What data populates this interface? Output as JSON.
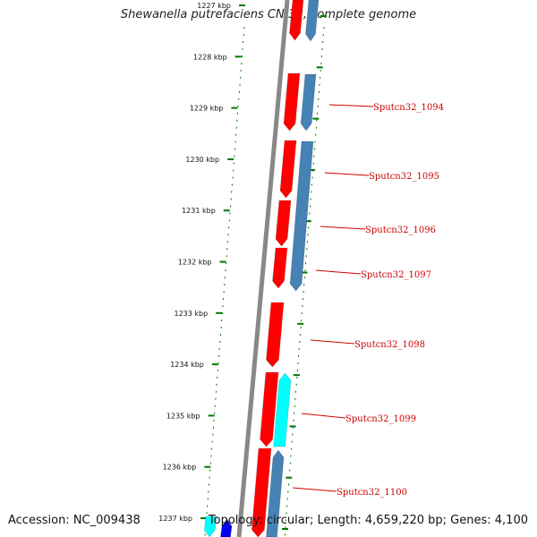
{
  "title": "Shewanella putrefaciens CN-32, complete genome",
  "footer": {
    "accession": "Accession: NC_009438",
    "topology": "Topology: circular; Length: 4,659,220 bp; Genes: 4,100"
  },
  "colors": {
    "forward_gene": "#ff0000",
    "reverse_gene": "#4682b4",
    "highlight_gene": "#00ffff",
    "other_gene": "#0000ee",
    "backbone": "#888888",
    "tick": "#007700",
    "label": "#cc0000"
  },
  "ruler": [
    "1227 kbp",
    "1228 kbp",
    "1229 kbp",
    "1230 kbp",
    "1231 kbp",
    "1232 kbp",
    "1233 kbp",
    "1234 kbp",
    "1235 kbp",
    "1236 kbp",
    "1237 kbp"
  ],
  "gene_labels": [
    "Sputcn32_1094",
    "Sputcn32_1095",
    "Sputcn32_1096",
    "Sputcn32_1097",
    "Sputcn32_1098",
    "Sputcn32_1099",
    "Sputcn32_1100"
  ]
}
